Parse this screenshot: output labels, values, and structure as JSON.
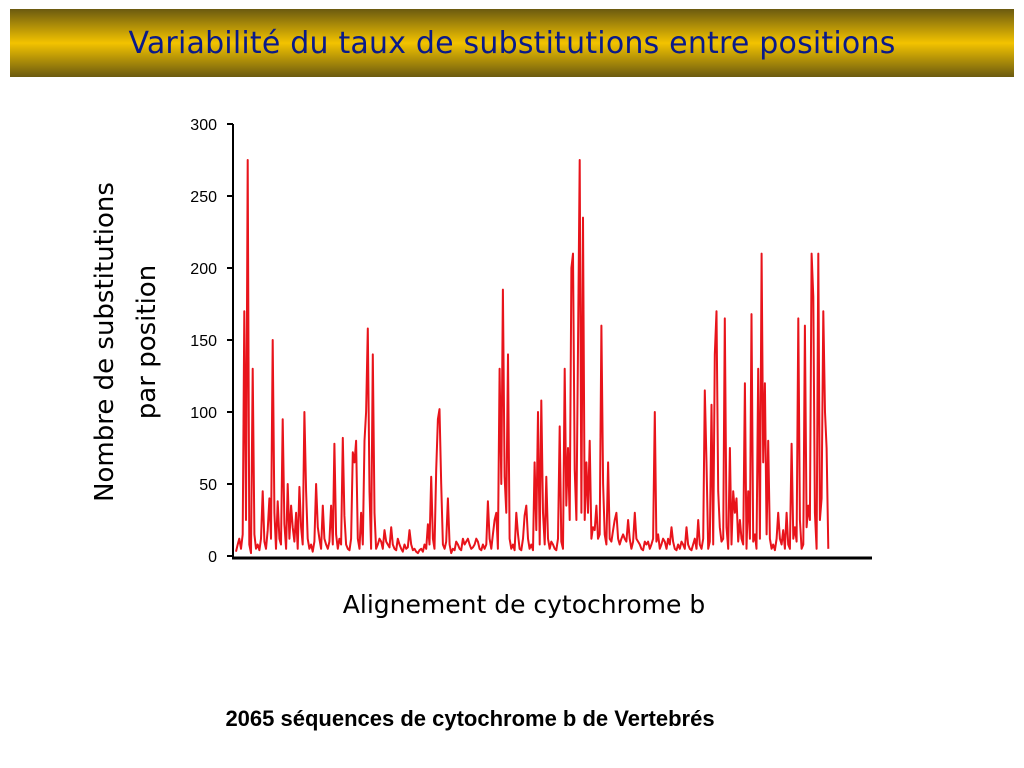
{
  "slide": {
    "title": "Variabilité du taux de substitutions entre positions",
    "footnote": "2065 séquences de cytochrome b de Vertebrés"
  },
  "colors": {
    "title_text": "#0a1a8a",
    "title_band": "#f3c300",
    "series": "#e8141b",
    "axis": "#000000"
  },
  "chart_data": {
    "type": "line",
    "ylabel_lines": [
      "Nombre de substitutions",
      "par position"
    ],
    "xlabel": "Alignement de cytochrome b",
    "ylim": [
      0,
      300
    ],
    "yticks": [
      0,
      50,
      100,
      150,
      200,
      250,
      300
    ],
    "xlim": [
      0,
      380
    ],
    "grid": false,
    "series": [
      {
        "values": [
          3,
          8,
          12,
          5,
          15,
          170,
          25,
          275,
          8,
          2,
          130,
          15,
          5,
          8,
          4,
          12,
          45,
          10,
          5,
          18,
          40,
          12,
          150,
          30,
          5,
          38,
          12,
          8,
          95,
          22,
          5,
          50,
          12,
          35,
          20,
          10,
          30,
          5,
          48,
          20,
          8,
          100,
          45,
          12,
          5,
          8,
          3,
          10,
          50,
          20,
          12,
          5,
          35,
          12,
          8,
          5,
          10,
          35,
          8,
          78,
          15,
          5,
          12,
          8,
          82,
          28,
          8,
          5,
          4,
          12,
          72,
          65,
          80,
          12,
          5,
          30,
          8,
          80,
          100,
          158,
          45,
          5,
          140,
          30,
          5,
          8,
          12,
          10,
          5,
          18,
          10,
          8,
          6,
          20,
          8,
          5,
          4,
          12,
          8,
          5,
          3,
          8,
          5,
          6,
          18,
          8,
          4,
          5,
          3,
          2,
          4,
          5,
          3,
          8,
          5,
          22,
          8,
          55,
          12,
          5,
          60,
          95,
          102,
          50,
          8,
          5,
          10,
          40,
          8,
          2,
          5,
          4,
          10,
          8,
          5,
          4,
          12,
          8,
          10,
          12,
          8,
          5,
          6,
          8,
          12,
          10,
          5,
          4,
          8,
          5,
          8,
          38,
          12,
          5,
          15,
          25,
          30,
          5,
          130,
          50,
          185,
          55,
          30,
          140,
          12,
          5,
          8,
          4,
          30,
          15,
          5,
          4,
          12,
          28,
          35,
          12,
          5,
          8,
          4,
          65,
          18,
          100,
          8,
          108,
          30,
          8,
          55,
          12,
          5,
          10,
          8,
          5,
          4,
          12,
          90,
          10,
          5,
          130,
          35,
          75,
          25,
          200,
          210,
          60,
          25,
          145,
          275,
          30,
          235,
          25,
          65,
          30,
          80,
          12,
          20,
          18,
          35,
          12,
          15,
          160,
          50,
          15,
          8,
          65,
          12,
          10,
          18,
          25,
          30,
          12,
          8,
          12,
          15,
          12,
          10,
          25,
          12,
          5,
          10,
          30,
          12,
          10,
          8,
          5,
          4,
          10,
          8,
          10,
          5,
          8,
          12,
          100,
          10,
          15,
          5,
          8,
          12,
          10,
          5,
          12,
          8,
          20,
          10,
          5,
          4,
          8,
          5,
          10,
          8,
          5,
          20,
          8,
          5,
          4,
          8,
          12,
          5,
          25,
          8,
          5,
          12,
          115,
          65,
          5,
          10,
          105,
          8,
          140,
          170,
          45,
          20,
          10,
          12,
          165,
          20,
          5,
          75,
          8,
          45,
          30,
          40,
          10,
          25,
          12,
          8,
          120,
          5,
          45,
          12,
          168,
          10,
          15,
          5,
          130,
          12,
          210,
          65,
          120,
          15,
          80,
          12,
          5,
          8,
          4,
          12,
          30,
          12,
          8,
          18,
          5,
          30,
          8,
          5,
          78,
          12,
          20,
          10,
          165,
          25,
          5,
          8,
          160,
          20,
          35,
          25,
          210,
          180,
          30,
          5,
          210,
          25,
          40,
          170,
          100,
          75,
          5
        ]
      }
    ]
  }
}
